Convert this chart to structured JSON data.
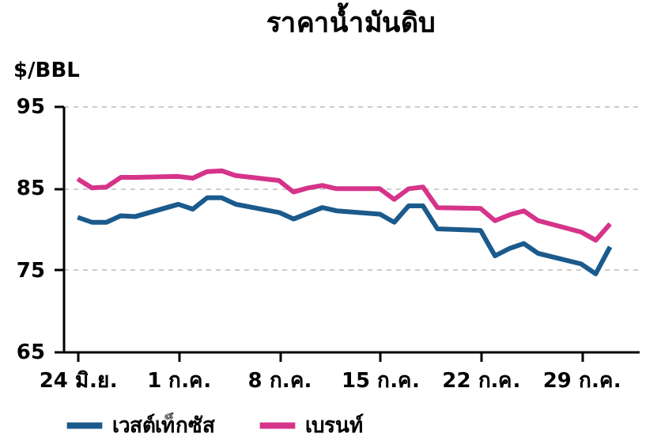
{
  "chart_data": {
    "type": "line",
    "title": "ราคาน้ำมันดิบ",
    "ylabel": "$/BBL",
    "x": [
      "--06-24",
      "--06-25",
      "--06-26",
      "--06-27",
      "--06-28",
      "--07-01",
      "--07-02",
      "--07-03",
      "--07-04",
      "--07-05",
      "--07-08",
      "--07-09",
      "--07-10",
      "--07-11",
      "--07-12",
      "--07-15",
      "--07-16",
      "--07-17",
      "--07-18",
      "--07-19",
      "--07-22",
      "--07-23",
      "--07-24",
      "--07-25",
      "--07-26",
      "--07-29",
      "--07-30",
      "--07-31"
    ],
    "series": [
      {
        "name": "เวสต์เท็กซัส",
        "color": "#1b5a8c",
        "values": [
          81.4,
          80.8,
          80.8,
          81.6,
          81.5,
          83.0,
          82.4,
          83.8,
          83.8,
          83.0,
          82.0,
          81.2,
          81.9,
          82.6,
          82.2,
          81.8,
          80.8,
          82.8,
          82.8,
          80.0,
          79.8,
          76.7,
          77.6,
          78.2,
          77.0,
          75.7,
          74.5,
          77.8
        ]
      },
      {
        "name": "เบรนท์",
        "color": "#d6338a",
        "values": [
          86.1,
          85.0,
          85.1,
          86.3,
          86.3,
          86.4,
          86.2,
          87.0,
          87.1,
          86.5,
          85.9,
          84.5,
          85.0,
          85.3,
          84.9,
          84.9,
          83.6,
          84.9,
          85.1,
          82.6,
          82.5,
          81.0,
          81.7,
          82.2,
          81.0,
          79.6,
          78.6,
          80.6
        ]
      }
    ],
    "xlim": [
      "--06-23",
      "--08-02"
    ],
    "xticks": [
      {
        "value": "--06-24",
        "label": "24 มิ.ย."
      },
      {
        "value": "--07-01",
        "label": "1 ก.ค."
      },
      {
        "value": "--07-08",
        "label": "8 ก.ค."
      },
      {
        "value": "--07-15",
        "label": "15 ก.ค."
      },
      {
        "value": "--07-22",
        "label": "22 ก.ค."
      },
      {
        "value": "--07-29",
        "label": "29 ก.ค."
      }
    ],
    "ylim": [
      65,
      95
    ],
    "yticks": [
      65,
      75,
      85,
      95
    ],
    "grid": "y",
    "legend": "bottom",
    "marker": "none",
    "line_style": "solid"
  }
}
